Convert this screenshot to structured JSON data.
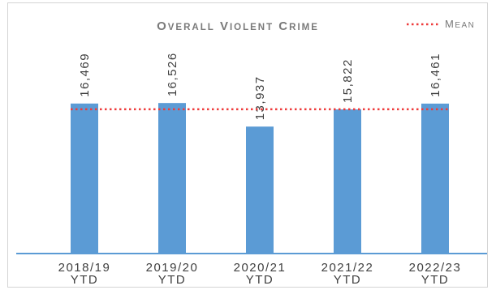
{
  "chart_data": {
    "type": "bar",
    "title": "Overall Violent Crime",
    "categories": [
      "2018/19\nYTD",
      "2019/20\nYTD",
      "2020/21\nYTD",
      "2021/22\nYTD",
      "2022/23\nYTD"
    ],
    "values": [
      16469,
      16526,
      13937,
      15822,
      16461
    ],
    "value_labels": [
      "16,469",
      "16,526",
      "13,937",
      "15,822",
      "16,461"
    ],
    "mean_line": {
      "name": "Mean",
      "value": 15843
    },
    "ylim": [
      0,
      24100
    ],
    "grid": false,
    "legend_position": "top-right",
    "colors": {
      "bar": "#5b9bd5",
      "mean": "#ee3b3b",
      "axis": "#5b9bd5",
      "title": "#7a7a7a"
    }
  }
}
